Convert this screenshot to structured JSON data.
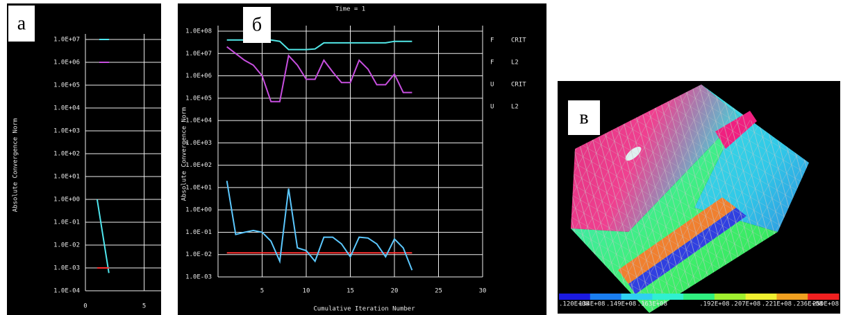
{
  "panels": {
    "labels": [
      "а",
      "б",
      "в"
    ]
  },
  "chart_data": [
    {
      "type": "line",
      "log_y": true,
      "grid": true,
      "y_label": "Absolute Convergence Norm",
      "x": [
        1,
        2
      ],
      "xlim": [
        0,
        6.5
      ],
      "xticks": [
        0,
        5
      ],
      "ylim": [
        0.0001,
        10000000
      ],
      "yticks": [
        {
          "value": 10000000,
          "label": "1.0E+07"
        },
        {
          "value": 1000000,
          "label": "1.0E+06"
        },
        {
          "value": 100000,
          "label": "1.0E+05"
        },
        {
          "value": 10000,
          "label": "1.0E+04"
        },
        {
          "value": 1000,
          "label": "1.0E+03"
        },
        {
          "value": 100,
          "label": "1.0E+02"
        },
        {
          "value": 10,
          "label": "1.0E+01"
        },
        {
          "value": 1,
          "label": "1.0E+00"
        },
        {
          "value": 0.1,
          "label": "1.0E-01"
        },
        {
          "value": 0.01,
          "label": "1.0E-02"
        },
        {
          "value": 0.001,
          "label": "1.0E-03"
        },
        {
          "value": 0.0001,
          "label": "1.0E-04"
        }
      ],
      "series": [
        {
          "color": "#4fe6ee",
          "legend": true,
          "values": [
            1,
            0.0006
          ]
        },
        {
          "color": "#c84fe0",
          "legend": true,
          "values": [
            null,
            null
          ]
        },
        {
          "color": "#ff3030",
          "legend": false,
          "values": [
            0.001,
            0.001
          ]
        }
      ]
    },
    {
      "type": "line",
      "log_y": true,
      "grid": true,
      "title": "Time = 1",
      "x_label": "Cumulative Iteration Number",
      "y_label": "Absolute Convergence Norm",
      "x": [
        1,
        2,
        3,
        4,
        5,
        6,
        7,
        8,
        9,
        10,
        11,
        12,
        13,
        14,
        15,
        16,
        17,
        18,
        19,
        20,
        21,
        22
      ],
      "xlim": [
        0,
        30
      ],
      "xticks": [
        5,
        10,
        15,
        20,
        25,
        30
      ],
      "ylim": [
        0.001,
        100000000
      ],
      "yticks": [
        {
          "value": 100000000,
          "label": "1.0E+08"
        },
        {
          "value": 10000000,
          "label": "1.0E+07"
        },
        {
          "value": 1000000,
          "label": "1.0E+06"
        },
        {
          "value": 100000,
          "label": "1.0E+05"
        },
        {
          "value": 10000,
          "label": "1.0E+04"
        },
        {
          "value": 1000,
          "label": "1.0E+03"
        },
        {
          "value": 100,
          "label": "1.0E+02"
        },
        {
          "value": 10,
          "label": "1.0E+01"
        },
        {
          "value": 1,
          "label": "1.0E+00"
        },
        {
          "value": 0.1,
          "label": "1.0E-01"
        },
        {
          "value": 0.01,
          "label": "1.0E-02"
        },
        {
          "value": 0.001,
          "label": "1.0E-03"
        }
      ],
      "series": [
        {
          "quantity": "F",
          "name": "CRIT",
          "color": "#52e8e8",
          "legend": true,
          "values": [
            40000000,
            40000000,
            40000000,
            40000000,
            40000000,
            40000000,
            35000000,
            15000000,
            15000000,
            15000000,
            16000000,
            30000000,
            30000000,
            30000000,
            30000000,
            30000000,
            30000000,
            30000000,
            30000000,
            35000000,
            35000000,
            35000000
          ]
        },
        {
          "quantity": "F",
          "name": "L2",
          "color": "#c84fe0",
          "legend": true,
          "values": [
            20000000,
            10000000,
            5000000,
            3000000,
            1000000,
            70000,
            70000,
            8000000,
            3000000,
            700000,
            700000,
            5000000,
            1500000,
            500000,
            500000,
            5000000,
            2000000,
            400000,
            400000,
            1200000,
            180000,
            180000
          ]
        },
        {
          "quantity": "U",
          "name": "CRIT",
          "color": "#ff3030",
          "legend": true,
          "values": [
            0.012,
            0.012,
            0.012,
            0.012,
            0.012,
            0.012,
            0.012,
            0.012,
            0.012,
            0.012,
            0.012,
            0.012,
            0.012,
            0.012,
            0.012,
            0.012,
            0.012,
            0.012,
            0.012,
            0.012,
            0.012,
            0.012
          ]
        },
        {
          "quantity": "U",
          "name": "L2",
          "color": "#5cc8ff",
          "legend": true,
          "values": [
            20,
            0.08,
            0.1,
            0.12,
            0.1,
            0.04,
            0.005,
            9,
            0.02,
            0.015,
            0.005,
            0.06,
            0.06,
            0.03,
            0.008,
            0.06,
            0.055,
            0.03,
            0.008,
            0.05,
            0.02,
            0.002
          ]
        }
      ]
    }
  ],
  "contour_legend": {
    "colors": [
      "#1a1ae0",
      "#1a7ef0",
      "#2fd0f0",
      "#30f0d0",
      "#30f080",
      "#a0f030",
      "#f0f030",
      "#f0a020",
      "#f02020"
    ],
    "labels": [
      ".120E+08",
      ".134E+08",
      ".149E+08",
      ".163E+08",
      null,
      ".192E+08",
      ".207E+08",
      ".221E+08",
      ".236E+08",
      ".250E+08"
    ]
  }
}
